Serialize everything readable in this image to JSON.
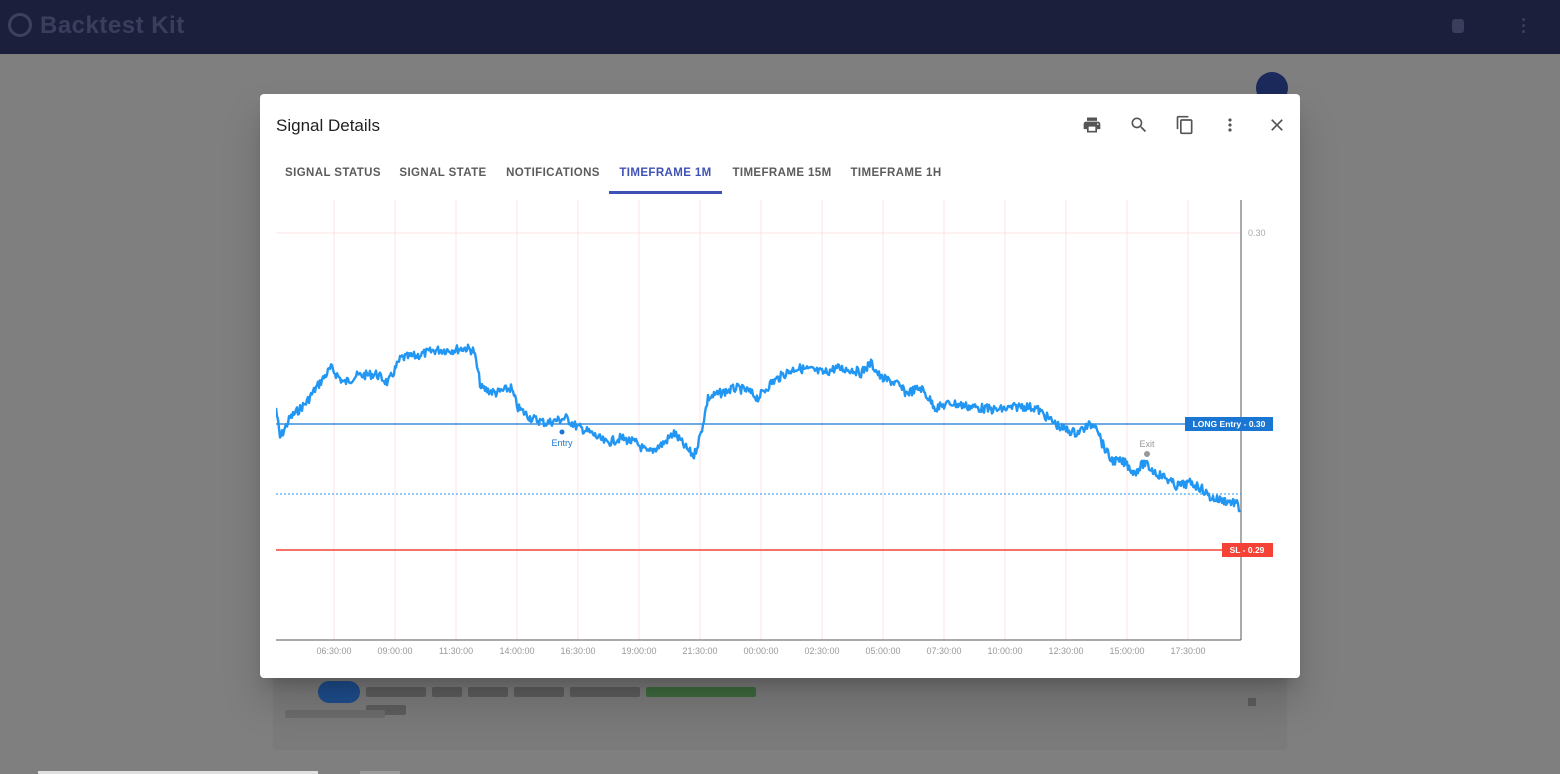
{
  "app": {
    "title": "Backtest Kit"
  },
  "dialog": {
    "title": "Signal Details",
    "tabs": [
      {
        "label": "SIGNAL STATUS",
        "active": false
      },
      {
        "label": "SIGNAL STATE",
        "active": false
      },
      {
        "label": "NOTIFICATIONS",
        "active": false
      },
      {
        "label": "TIMEFRAME 1M",
        "active": true
      },
      {
        "label": "TIMEFRAME 15M",
        "active": false
      },
      {
        "label": "TIMEFRAME 1H",
        "active": false
      }
    ],
    "actions": [
      "print-icon",
      "search-icon",
      "copy-icon",
      "more-vert-icon",
      "close-icon"
    ],
    "accent_color": "#3f51b5"
  },
  "chart_data": {
    "type": "line",
    "x_ticks": [
      "06:30:00",
      "09:00:00",
      "11:30:00",
      "14:00:00",
      "16:30:00",
      "19:00:00",
      "21:30:00",
      "00:00:00",
      "02:30:00",
      "05:00:00",
      "07:30:00",
      "10:00:00",
      "12:30:00",
      "15:00:00",
      "17:30:00"
    ],
    "y_ticks": [
      "0.30"
    ],
    "series_color": "#2196f3",
    "price_lines": [
      {
        "label": "LONG Entry",
        "value": "0.30",
        "color": "#1976d2"
      },
      {
        "label": "SL",
        "value": "0.29",
        "color": "#f44336"
      }
    ],
    "markers": [
      {
        "label": "Entry",
        "time": "15:55:00"
      },
      {
        "label": "Exit",
        "time": "15:50:00"
      }
    ],
    "grid": true
  }
}
